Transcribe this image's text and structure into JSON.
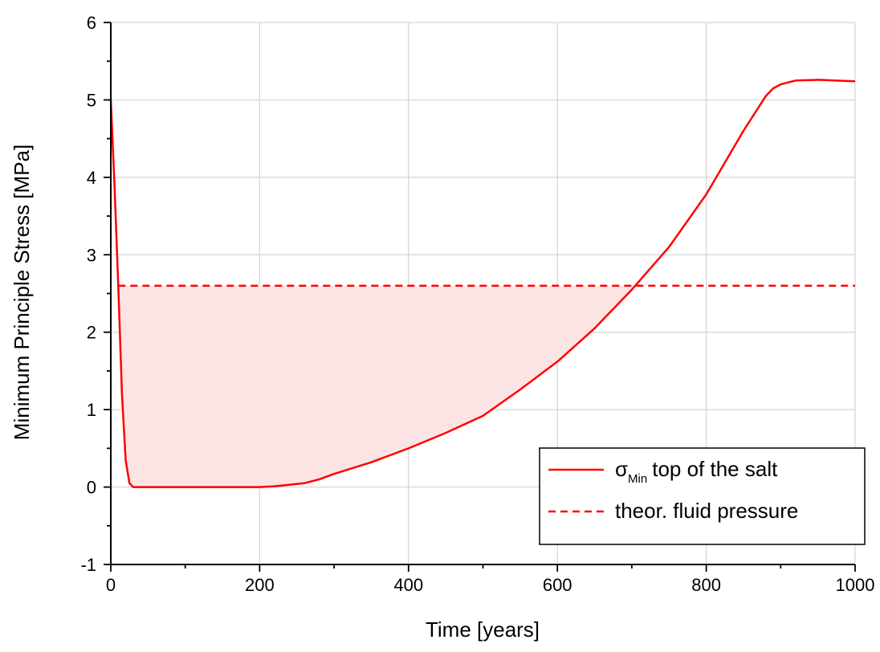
{
  "chart_data": {
    "type": "line",
    "xlabel": "Time [years]",
    "ylabel": "Minimum Principle Stress [MPa]",
    "xlim": [
      0,
      1000
    ],
    "ylim": [
      -1,
      6
    ],
    "x_ticks": [
      0,
      200,
      400,
      600,
      800,
      1000
    ],
    "y_ticks": [
      -1,
      0,
      1,
      2,
      3,
      4,
      5,
      6
    ],
    "x_tick_labels": [
      "0",
      "200",
      "400",
      "600",
      "800",
      "1000"
    ],
    "y_tick_labels": [
      "-1",
      "0",
      "1",
      "2",
      "3",
      "4",
      "5",
      "6"
    ],
    "grid": true,
    "legend_position": "bottom-right",
    "line_color": "#ff0000",
    "fill_color": "#fde4e4",
    "series": [
      {
        "symbol": "σ",
        "subscript": "Min",
        "name": "top of the salt",
        "style": "solid",
        "x": [
          0,
          5,
          10,
          15,
          20,
          25,
          30,
          50,
          100,
          150,
          200,
          220,
          240,
          260,
          280,
          300,
          350,
          400,
          450,
          500,
          550,
          600,
          650,
          700,
          750,
          800,
          850,
          880,
          890,
          900,
          920,
          950,
          1000
        ],
        "y": [
          5.0,
          3.9,
          2.6,
          1.2,
          0.35,
          0.05,
          0.0,
          0.0,
          0.0,
          0.0,
          0.0,
          0.01,
          0.03,
          0.05,
          0.1,
          0.17,
          0.32,
          0.5,
          0.7,
          0.92,
          1.26,
          1.62,
          2.05,
          2.55,
          3.1,
          3.78,
          4.6,
          5.05,
          5.15,
          5.2,
          5.25,
          5.26,
          5.24
        ]
      },
      {
        "name": "theor. fluid pressure",
        "style": "dashed",
        "x": [
          10,
          1000
        ],
        "y": [
          2.6,
          2.6
        ]
      }
    ]
  }
}
